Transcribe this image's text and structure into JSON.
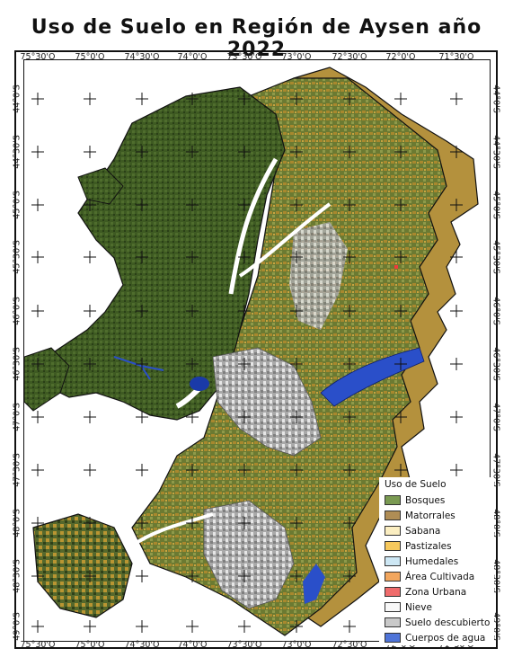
{
  "title": "Uso de Suelo en Región de Aysen año 2022",
  "longitude_labels": [
    "75°30'O",
    "75°0'O",
    "74°30'O",
    "74°0'O",
    "73°30'O",
    "73°0'O",
    "72°30'O",
    "72°0'O",
    "71°30'O"
  ],
  "latitude_labels": [
    "44°0'S",
    "44°30'S",
    "45°0'S",
    "45°30'S",
    "46°0'S",
    "46°30'S",
    "47°0'S",
    "47°30'S",
    "48°0'S",
    "48°30'S",
    "49°0'S"
  ],
  "legend": {
    "title": "Uso de Suelo",
    "items": [
      {
        "label": "Bosques",
        "color": "#7a9a52"
      },
      {
        "label": "Matorrales",
        "color": "#b08d55"
      },
      {
        "label": "Sabana",
        "color": "#fbeec1"
      },
      {
        "label": "Pastizales",
        "color": "#f7c95d"
      },
      {
        "label": "Humedales",
        "color": "#cde7f4"
      },
      {
        "label": "Área Cultivada",
        "color": "#f2a65e"
      },
      {
        "label": "Zona Urbana",
        "color": "#ef6b6b"
      },
      {
        "label": "Nieve",
        "color": "#f7f7f7"
      },
      {
        "label": "Suelo descubierto",
        "color": "#c9c9c9"
      },
      {
        "label": "Cuerpos de agua",
        "color": "#4f74d8"
      }
    ]
  }
}
